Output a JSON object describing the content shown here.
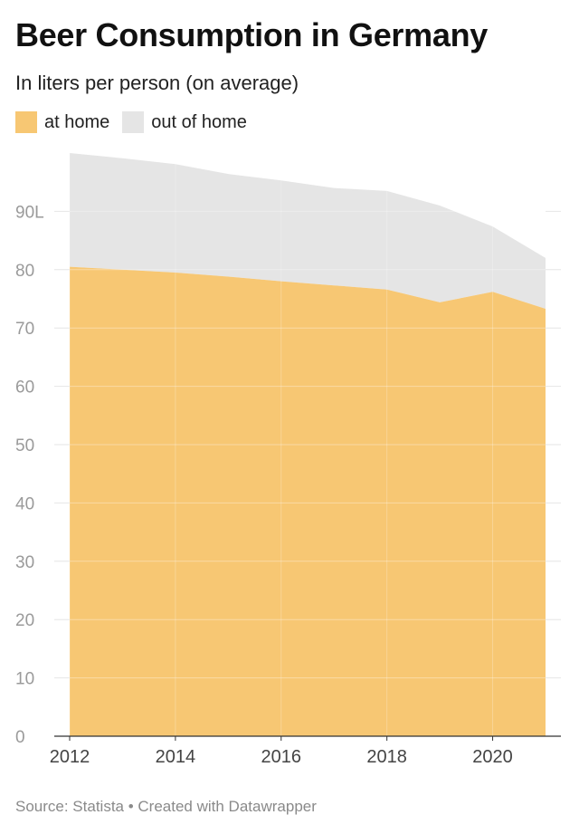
{
  "title": "Beer Consumption in Germany",
  "subtitle": "In liters per person (on average)",
  "footer": "Source: Statista • Created with Datawrapper",
  "colors": {
    "at_home": "#f7c773",
    "out_of_home": "#e5e5e5",
    "grid": "#e6e6e6",
    "tick_text": "#9a9a9a",
    "axis_text": "#444444"
  },
  "chart_data": {
    "type": "area",
    "stacked": true,
    "x": [
      2012,
      2013,
      2014,
      2015,
      2016,
      2017,
      2018,
      2019,
      2020,
      2021
    ],
    "series": [
      {
        "name": "at home",
        "values": [
          80.5,
          80,
          79.5,
          78.8,
          78,
          77.3,
          76.6,
          74.4,
          76.2,
          73.3
        ]
      },
      {
        "name": "out of home",
        "values": [
          19.5,
          19.1,
          18.6,
          17.6,
          17.3,
          16.7,
          16.9,
          16.6,
          11.2,
          8.7
        ]
      }
    ],
    "legend": [
      "at home",
      "out of home"
    ],
    "xticks": [
      2012,
      2014,
      2016,
      2018,
      2020
    ],
    "xtick_labels": [
      "2012",
      "2014",
      "2016",
      "2018",
      "2020"
    ],
    "yticks": [
      0,
      10,
      20,
      30,
      40,
      50,
      60,
      70,
      80,
      90
    ],
    "ytick_labels": [
      "0",
      "10",
      "20",
      "30",
      "40",
      "50",
      "60",
      "70",
      "80",
      "90L"
    ],
    "xlim": [
      2012,
      2021
    ],
    "ylim": [
      0,
      100
    ],
    "grid": true,
    "legend_position": "top-left"
  }
}
